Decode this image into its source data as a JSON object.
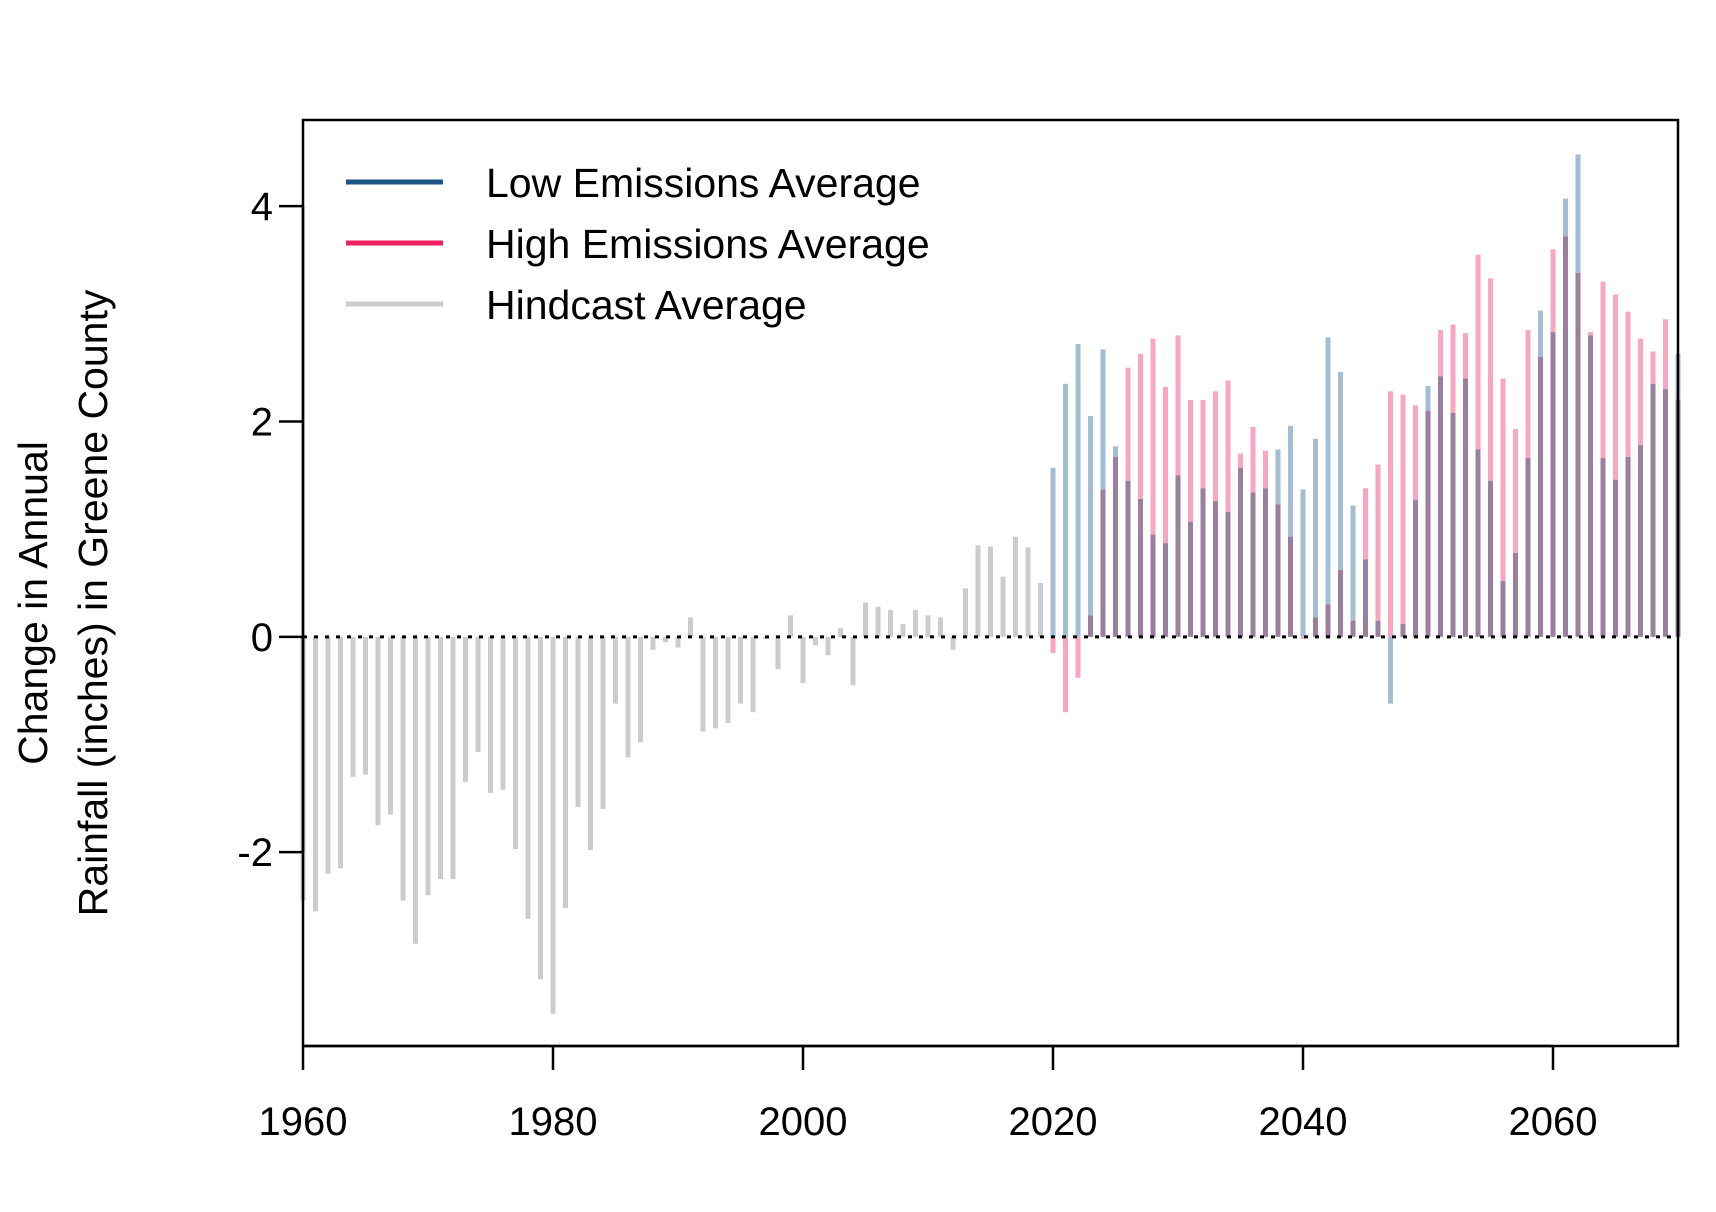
{
  "chart_data": {
    "type": "bar",
    "title": "",
    "xlabel": "",
    "ylabel_lines": [
      "Change in Annual",
      "Rainfall (inches) in Greene County"
    ],
    "xlim": [
      1960,
      2070
    ],
    "ylim": [
      -3.8,
      4.8
    ],
    "x_ticks": [
      1960,
      1980,
      2000,
      2020,
      2040,
      2060
    ],
    "y_ticks": [
      -2,
      0,
      2,
      4
    ],
    "zero_line": "dotted",
    "legend_position": "top-left",
    "colors": {
      "low": "#1f5582",
      "high": "#ee1f5f",
      "hindcast": "#cccccc",
      "low_bar": "#a3bdd3",
      "high_bar": "#fba6c0",
      "overlap_bar": "#9a7f9e"
    },
    "legend": [
      {
        "key": "low",
        "label": "Low Emissions Average"
      },
      {
        "key": "high",
        "label": "High Emissions Average"
      },
      {
        "key": "hindcast",
        "label": "Hindcast Average"
      }
    ],
    "series": [
      {
        "name": "Hindcast Average",
        "key": "hindcast",
        "x": [
          1960,
          1961,
          1962,
          1963,
          1964,
          1965,
          1966,
          1967,
          1968,
          1969,
          1970,
          1971,
          1972,
          1973,
          1974,
          1975,
          1976,
          1977,
          1978,
          1979,
          1980,
          1981,
          1982,
          1983,
          1984,
          1985,
          1986,
          1987,
          1988,
          1989,
          1990,
          1991,
          1992,
          1993,
          1994,
          1995,
          1996,
          1997,
          1998,
          1999,
          2000,
          2001,
          2002,
          2003,
          2004,
          2005,
          2006,
          2007,
          2008,
          2009,
          2010,
          2011,
          2012,
          2013,
          2014,
          2015,
          2016,
          2017,
          2018,
          2019
        ],
        "values": [
          -2.45,
          -2.55,
          -2.2,
          -2.15,
          -1.3,
          -1.28,
          -1.75,
          -1.65,
          -2.45,
          -2.85,
          -2.4,
          -2.25,
          -2.25,
          -1.35,
          -1.07,
          -1.45,
          -1.42,
          -1.97,
          -2.62,
          -3.18,
          -3.5,
          -2.52,
          -1.58,
          -1.98,
          -1.6,
          -0.62,
          -1.12,
          -0.98,
          -0.12,
          -0.05,
          -0.1,
          0.18,
          -0.88,
          -0.85,
          -0.8,
          -0.62,
          -0.7,
          -0.02,
          -0.3,
          0.2,
          -0.43,
          -0.08,
          -0.17,
          0.08,
          -0.45,
          0.32,
          0.28,
          0.25,
          0.12,
          0.25,
          0.2,
          0.18,
          -0.12,
          0.45,
          0.85,
          0.84,
          0.56,
          0.93,
          0.83,
          0.5
        ]
      },
      {
        "name": "Low Emissions Average",
        "key": "low",
        "x": [
          2020,
          2021,
          2022,
          2023,
          2024,
          2025,
          2026,
          2027,
          2028,
          2029,
          2030,
          2031,
          2032,
          2033,
          2034,
          2035,
          2036,
          2037,
          2038,
          2039,
          2040,
          2041,
          2042,
          2043,
          2044,
          2045,
          2046,
          2047,
          2048,
          2049,
          2050,
          2051,
          2052,
          2053,
          2054,
          2055,
          2056,
          2057,
          2058,
          2059,
          2060,
          2061,
          2062,
          2063,
          2064,
          2065,
          2066,
          2067,
          2068,
          2069,
          2070
        ],
        "values": [
          1.57,
          2.35,
          2.72,
          2.05,
          2.67,
          1.77,
          1.45,
          1.28,
          0.95,
          0.87,
          1.5,
          1.07,
          1.38,
          1.26,
          1.16,
          1.57,
          1.34,
          1.38,
          1.74,
          1.96,
          1.37,
          1.84,
          2.78,
          2.46,
          1.22,
          0.72,
          0.15,
          -0.62,
          0.12,
          1.27,
          2.33,
          2.42,
          2.08,
          2.4,
          1.74,
          1.45,
          0.52,
          0.78,
          1.66,
          3.03,
          2.83,
          4.07,
          4.48,
          2.8,
          1.66,
          1.46,
          1.67,
          1.78,
          2.35,
          2.3,
          2.63
        ]
      },
      {
        "name": "High Emissions Average",
        "key": "high",
        "x": [
          2020,
          2021,
          2022,
          2023,
          2024,
          2025,
          2026,
          2027,
          2028,
          2029,
          2030,
          2031,
          2032,
          2033,
          2034,
          2035,
          2036,
          2037,
          2038,
          2039,
          2040,
          2041,
          2042,
          2043,
          2044,
          2045,
          2046,
          2047,
          2048,
          2049,
          2050,
          2051,
          2052,
          2053,
          2054,
          2055,
          2056,
          2057,
          2058,
          2059,
          2060,
          2061,
          2062,
          2063,
          2064,
          2065,
          2066,
          2067,
          2068,
          2069,
          2070
        ],
        "values": [
          -0.15,
          -0.7,
          -0.38,
          0.2,
          1.37,
          1.67,
          2.5,
          2.63,
          2.77,
          2.32,
          2.8,
          2.2,
          2.2,
          2.28,
          2.38,
          1.7,
          1.95,
          1.73,
          1.23,
          0.93,
          -0.02,
          0.18,
          0.3,
          0.62,
          0.15,
          1.38,
          1.6,
          2.28,
          2.25,
          2.15,
          2.1,
          2.85,
          2.9,
          2.82,
          3.55,
          3.33,
          2.4,
          1.93,
          2.85,
          2.6,
          3.6,
          3.72,
          3.38,
          2.83,
          3.3,
          3.18,
          3.02,
          2.77,
          2.65,
          2.95,
          2.2
        ]
      }
    ]
  }
}
